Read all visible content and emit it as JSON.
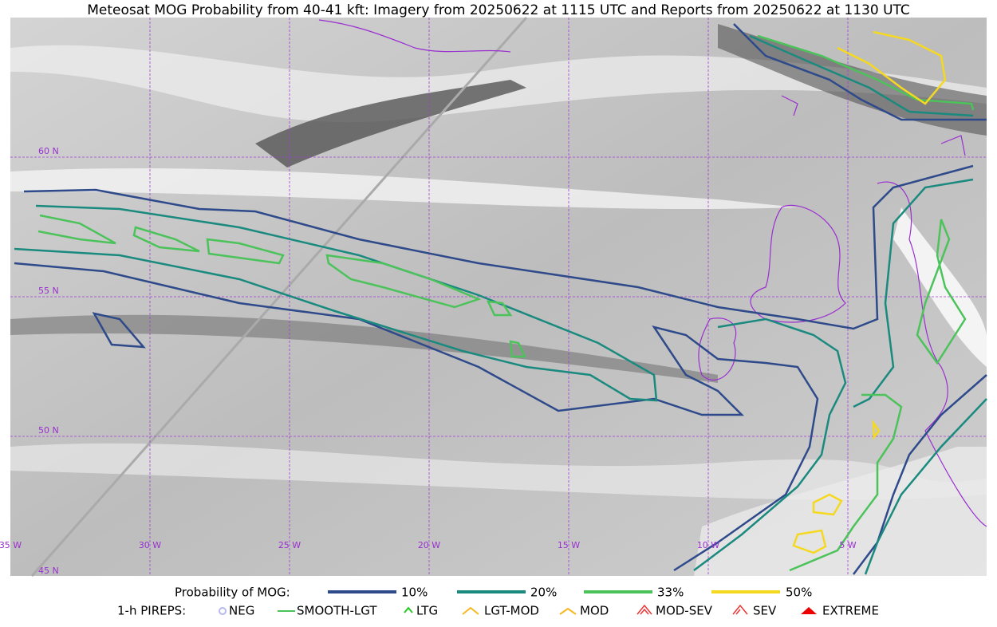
{
  "title": "Meteosat MOG Probability from 40-41 kft: Imagery from 20250622 at 1115 UTC and Reports from 20250622 at 1130 UTC",
  "lat_labels": [
    "60 N",
    "55 N",
    "50 N",
    "45 N"
  ],
  "lon_labels": [
    "35 W",
    "30 W",
    "25 W",
    "20 W",
    "15 W",
    "10 W",
    "5 W"
  ],
  "legend": {
    "probability": {
      "label": "Probability of MOG:",
      "items": [
        "10%",
        "20%",
        "33%",
        "50%"
      ]
    },
    "pireps": {
      "label": "1-h PIREPS:",
      "items": [
        "NEG",
        "SMOOTH-LGT",
        "LTG",
        "LGT-MOD",
        "MOD",
        "MOD-SEV",
        "SEV",
        "EXTREME"
      ]
    }
  }
}
